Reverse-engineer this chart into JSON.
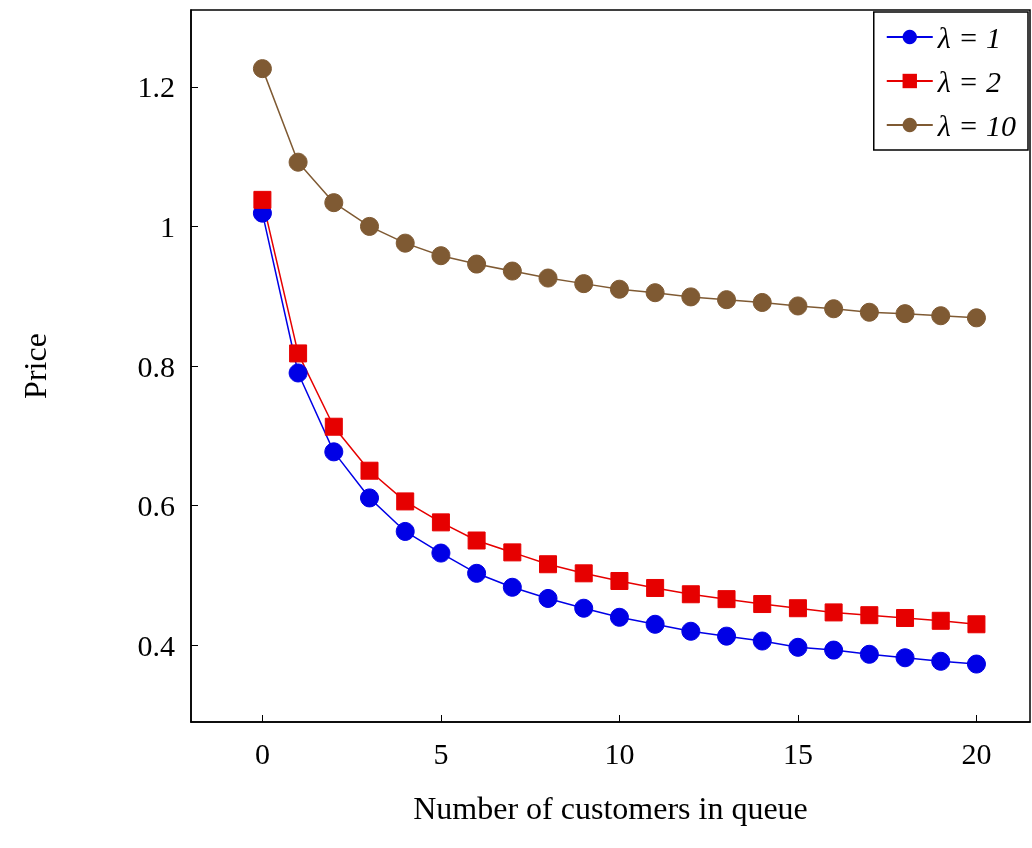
{
  "chart_data": {
    "type": "line",
    "xlabel": "Number of customers in queue",
    "ylabel": "Price",
    "x": [
      0,
      1,
      2,
      3,
      4,
      5,
      6,
      7,
      8,
      9,
      10,
      11,
      12,
      13,
      14,
      15,
      16,
      17,
      18,
      19,
      20
    ],
    "xlim": [
      -2,
      21.5
    ],
    "xticks": [
      0,
      5,
      10,
      15,
      20
    ],
    "ylim": [
      0.29,
      1.31
    ],
    "yticks": [
      0.4,
      0.6,
      0.8,
      1,
      1.2
    ],
    "grid": false,
    "legend": "top right",
    "line_style": "solid",
    "series": [
      {
        "name": "λ = 1",
        "color": "#0000e6",
        "marker": "circle",
        "values": [
          1.019,
          0.79,
          0.677,
          0.611,
          0.563,
          0.532,
          0.503,
          0.483,
          0.467,
          0.453,
          0.44,
          0.43,
          0.42,
          0.413,
          0.406,
          0.397,
          0.393,
          0.387,
          0.382,
          0.377,
          0.373
        ]
      },
      {
        "name": "λ = 2",
        "color": "#e60000",
        "marker": "square",
        "values": [
          1.038,
          0.818,
          0.713,
          0.65,
          0.606,
          0.576,
          0.55,
          0.533,
          0.516,
          0.503,
          0.492,
          0.482,
          0.473,
          0.466,
          0.459,
          0.453,
          0.447,
          0.443,
          0.439,
          0.435,
          0.43
        ]
      },
      {
        "name": "λ = 10",
        "color": "#7f5a33",
        "marker": "circle",
        "values": [
          1.226,
          1.092,
          1.034,
          1.0,
          0.976,
          0.958,
          0.946,
          0.936,
          0.926,
          0.918,
          0.91,
          0.905,
          0.899,
          0.895,
          0.891,
          0.886,
          0.882,
          0.877,
          0.875,
          0.872,
          0.869
        ]
      }
    ]
  }
}
